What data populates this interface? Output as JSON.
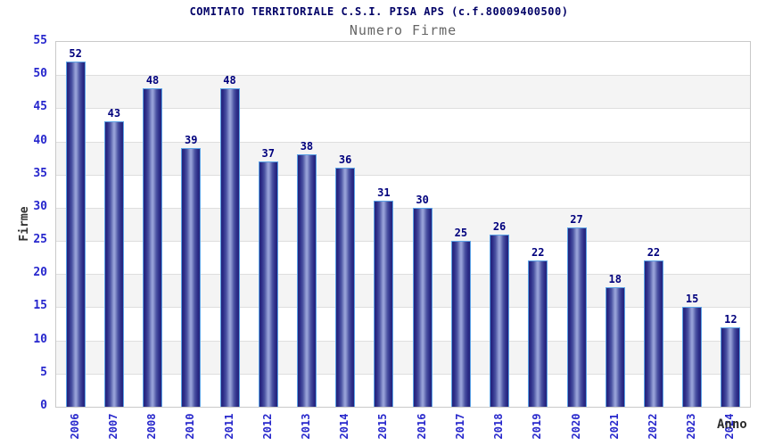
{
  "chart_data": {
    "type": "bar",
    "title": "COMITATO TERRITORIALE C.S.I. PISA APS (c.f.80009400500)",
    "subtitle": "Numero Firme",
    "xlabel": "Anno",
    "ylabel": "Firme",
    "categories": [
      "2006",
      "2007",
      "2008",
      "2010",
      "2011",
      "2012",
      "2013",
      "2014",
      "2015",
      "2016",
      "2017",
      "2018",
      "2019",
      "2020",
      "2021",
      "2022",
      "2023",
      "2024"
    ],
    "values": [
      52,
      43,
      48,
      39,
      48,
      37,
      38,
      36,
      31,
      30,
      25,
      26,
      22,
      27,
      18,
      22,
      15,
      12
    ],
    "ylim": [
      0,
      55
    ],
    "yticks": [
      0,
      5,
      10,
      15,
      20,
      25,
      30,
      35,
      40,
      45,
      50,
      55
    ],
    "grid": "horizontal-bands",
    "legend": "none",
    "colors": {
      "title": "#000066",
      "subtitle": "#666666",
      "tick_labels": "#2828cc",
      "value_labels": "#00007d",
      "axis_titles": "#333333",
      "bar_dark": "#23237a",
      "bar_light": "#9ba5dc",
      "bar_outline": "#5ba2e6",
      "band_gray": "#f4f4f4",
      "gridline": "#dedede",
      "plot_border": "#c9c9c9"
    }
  }
}
